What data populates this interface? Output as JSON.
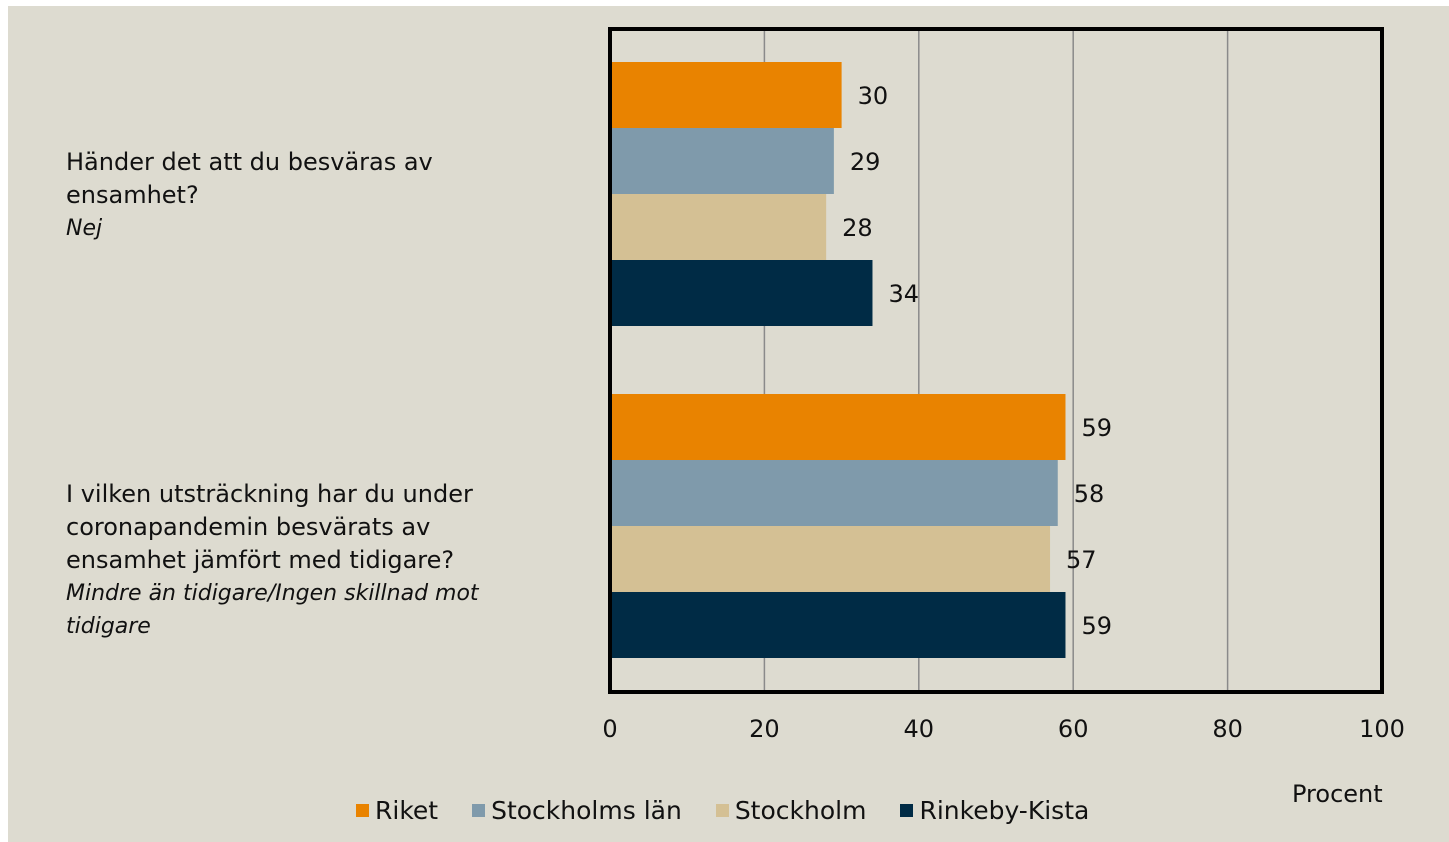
{
  "chart_data": {
    "type": "bar",
    "orientation": "horizontal",
    "categories": [
      {
        "question": "Händer det att du besväras av ensamhet?",
        "question_lines": [
          "Händer det att du besväras av",
          "ensamhet?"
        ],
        "answer": "Nej",
        "answer_lines": [
          "Nej"
        ]
      },
      {
        "question": "I vilken utsträckning har du under coronapandemin besvärats av ensamhet jämfört med tidigare?",
        "question_lines": [
          "I vilken utsträckning har du under",
          "coronapandemin besvärats av",
          "ensamhet jämfört med tidigare?"
        ],
        "answer": "Mindre än tidigare/Ingen skillnad mot tidigare",
        "answer_lines": [
          "Mindre än tidigare/Ingen skillnad mot",
          "tidigare"
        ]
      }
    ],
    "series": [
      {
        "name": "Riket",
        "color": "#e98300",
        "values": [
          30,
          59
        ]
      },
      {
        "name": "Stockholms län",
        "color": "#7f9aab",
        "values": [
          29,
          58
        ]
      },
      {
        "name": "Stockholm",
        "color": "#d4c094",
        "values": [
          28,
          57
        ]
      },
      {
        "name": "Rinkeby-Kista",
        "color": "#002b45",
        "values": [
          34,
          59
        ]
      }
    ],
    "xlim": [
      0,
      100
    ],
    "xticks": [
      0,
      20,
      40,
      60,
      80,
      100
    ],
    "xlabel": "Procent",
    "grid": true,
    "legend_position": "bottom"
  }
}
